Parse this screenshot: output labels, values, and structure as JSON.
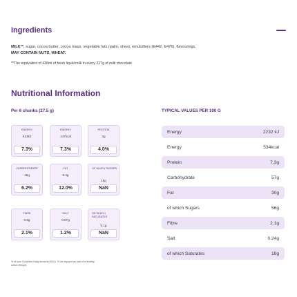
{
  "ingredients": {
    "title": "Ingredients",
    "text": "sugar, cocoa butter, cocoa mass, vegetable fats (palm, shea), emulsifiers (E442, E476), flavourings.",
    "lead": "MILK**",
    "warning": "MAY CONTAIN NUTS, WHEAT.",
    "note": "**The equivalent of 426ml of fresh liquid milk in every 227g of milk chocolate"
  },
  "nutrition": {
    "title": "Nutritional Information",
    "per_label": "Per 6 chunks (27.5 g)",
    "typical_label": "TYPICAL VALUES PER 100 G",
    "gda_note": "% of your Guideline Daily Amount (GDA). To be enjoyed as part of a healthy, active lifestyle.",
    "cards": [
      {
        "label": "ENERGY",
        "v1": "613kJ",
        "v2": "",
        "pct": "7.3%"
      },
      {
        "label": "ENERGY",
        "v1": "147kcal",
        "v2": "",
        "pct": "7.3%"
      },
      {
        "label": "PROTEIN",
        "v1": "2g",
        "v2": "",
        "pct": "4.0%"
      },
      {
        "label": "CARBOHYDRATE",
        "v1": "16g",
        "v2": "",
        "pct": "6.2%"
      },
      {
        "label": "FAT",
        "v1": "8.4g",
        "v2": "",
        "pct": "12.0%"
      },
      {
        "label": "OF WHICH SUGARS",
        "v1": "",
        "v2": "15g",
        "pct": "NaN"
      },
      {
        "label": "FIBRE",
        "v1": "0.5g",
        "v2": "",
        "pct": "2.1%"
      },
      {
        "label": "SALT",
        "v1": "0.07g",
        "v2": "",
        "pct": "1.2%"
      },
      {
        "label": "OR WHICH SATURATES",
        "v1": "",
        "v2": "5.1g",
        "pct": "NaN"
      }
    ],
    "table": [
      {
        "name": "Energy",
        "value": "2232 kJ"
      },
      {
        "name": "Energy",
        "value": "534kcal"
      },
      {
        "name": "Protein",
        "value": "7.3g"
      },
      {
        "name": "Carbohydrate",
        "value": "57g"
      },
      {
        "name": "Fat",
        "value": "30g"
      },
      {
        "name": "of which Sugars",
        "value": "56g"
      },
      {
        "name": "Fibre",
        "value": "2.1g"
      },
      {
        "name": "Salt",
        "value": "0.24g"
      },
      {
        "name": "of which Saturates",
        "value": "18g"
      }
    ]
  }
}
